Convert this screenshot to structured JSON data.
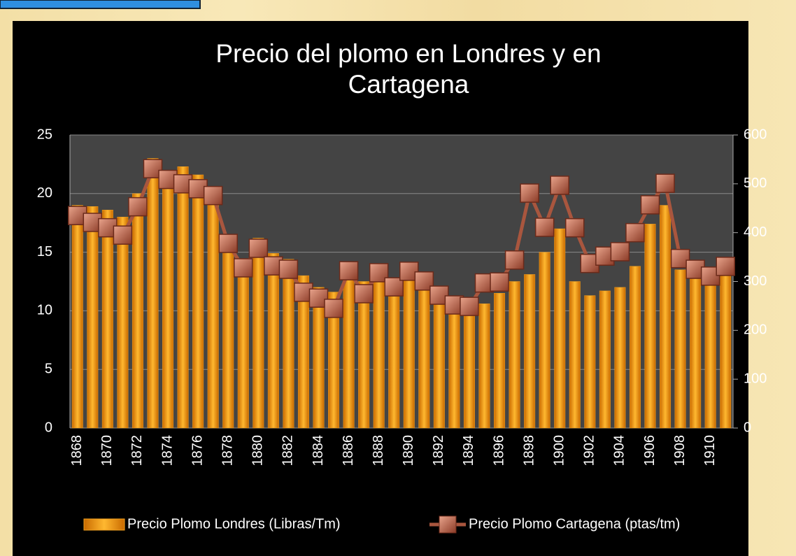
{
  "chart_data": {
    "type": "bar-line",
    "title": "Precio del plomo en Londres y en Cartagena",
    "categories": [
      "1868",
      null,
      "1870",
      null,
      "1872",
      null,
      "1874",
      null,
      "1876",
      null,
      "1878",
      null,
      "1880",
      null,
      "1882",
      null,
      "1884",
      null,
      "1886",
      null,
      "1888",
      null,
      "1890",
      null,
      "1892",
      null,
      "1894",
      null,
      "1896",
      null,
      "1898",
      null,
      "1900",
      null,
      "1902",
      null,
      "1904",
      null,
      "1906",
      null,
      "1908",
      null,
      "1910",
      null
    ],
    "series": [
      {
        "name": "Precio Plomo Londres (Libras/Tm)",
        "type": "bar",
        "color": "#f0a020",
        "values": [
          19.0,
          18.9,
          18.6,
          18.0,
          20.0,
          23.0,
          21.5,
          22.3,
          21.6,
          20.6,
          16.5,
          13.5,
          16.2,
          14.9,
          14.4,
          13.0,
          12.0,
          11.6,
          13.2,
          12.5,
          13.0,
          12.3,
          13.1,
          12.6,
          11.5,
          11.1,
          10.7,
          10.6,
          11.5,
          12.5,
          13.1,
          15.0,
          17.0,
          12.5,
          11.3,
          11.7,
          12.0,
          13.8,
          17.4,
          19.0,
          13.5,
          12.8,
          12.3,
          13.5
        ]
      },
      {
        "name": "Precio Plomo Cartagena (ptas/tm)",
        "type": "line",
        "axis": "y2",
        "color": "#a9563e",
        "values": [
          435,
          421,
          410,
          395,
          453,
          531,
          509,
          500,
          490,
          476,
          378,
          328,
          368,
          332,
          325,
          278,
          266,
          245,
          322,
          275,
          318,
          289,
          321,
          301,
          272,
          252,
          249,
          297,
          299,
          344,
          481,
          411,
          497,
          410,
          337,
          352,
          361,
          400,
          457,
          501,
          347,
          325,
          311,
          331
        ]
      }
    ],
    "ylim": [
      0,
      25
    ],
    "yticks": [
      0,
      5,
      10,
      15,
      20,
      25
    ],
    "y2lim": [
      0,
      600
    ],
    "y2ticks": [
      0,
      100,
      200,
      300,
      400,
      500,
      600
    ],
    "grid": true
  }
}
